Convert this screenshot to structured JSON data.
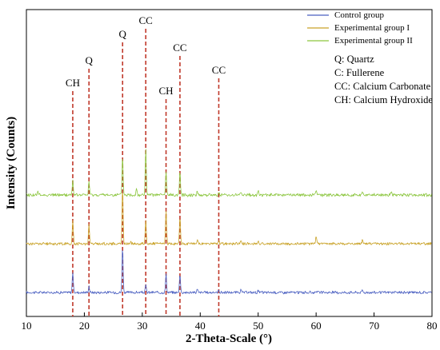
{
  "chart_data": {
    "type": "line",
    "title": "",
    "xlabel": "2-Theta-Scale (°)",
    "ylabel": "Intensity (Counts)",
    "xlim": [
      10,
      80
    ],
    "xticks": [
      10,
      20,
      30,
      40,
      50,
      60,
      70,
      80
    ],
    "yticks_shown": false,
    "legend": {
      "placement": "top-right",
      "entries": [
        "Control group",
        "Experimental group I",
        "Experimental group II"
      ]
    },
    "annotations": [
      "Q: Quartz",
      "C: Fullerene",
      "CC: Calcium Carbonate",
      "CH: Calcium Hydroxide"
    ],
    "reference_lines": [
      {
        "x": 18.0,
        "label": "CH"
      },
      {
        "x": 20.8,
        "label": "Q"
      },
      {
        "x": 26.6,
        "label": "Q"
      },
      {
        "x": 30.6,
        "label": "CC"
      },
      {
        "x": 34.1,
        "label": "CH"
      },
      {
        "x": 36.5,
        "label": "CC"
      },
      {
        "x": 43.2,
        "label": "CC"
      }
    ],
    "series": [
      {
        "name": "Control group",
        "color": "#4a5fc1",
        "baseline": 10,
        "noise": 1.5,
        "peaks": [
          [
            18.0,
            26
          ],
          [
            20.8,
            8
          ],
          [
            26.6,
            58
          ],
          [
            30.6,
            9
          ],
          [
            34.1,
            23
          ],
          [
            36.5,
            24
          ],
          [
            39.5,
            4
          ],
          [
            43.2,
            3
          ],
          [
            47.0,
            3
          ],
          [
            50.0,
            2.5
          ],
          [
            60.0,
            3
          ],
          [
            68.0,
            3
          ]
        ]
      },
      {
        "name": "Experimental group I",
        "color": "#c9a227",
        "baseline": 71,
        "noise": 1.5,
        "peaks": [
          [
            18.0,
            28
          ],
          [
            20.8,
            24
          ],
          [
            26.6,
            70
          ],
          [
            28.0,
            4
          ],
          [
            30.6,
            30
          ],
          [
            34.1,
            42
          ],
          [
            36.5,
            34
          ],
          [
            39.5,
            4
          ],
          [
            43.2,
            4
          ],
          [
            47.0,
            5
          ],
          [
            50.0,
            4
          ],
          [
            60.0,
            9
          ],
          [
            68.0,
            6
          ]
        ]
      },
      {
        "name": "Experimental group II",
        "color": "#8cc63f",
        "baseline": 132,
        "noise": 1.7,
        "peaks": [
          [
            12.0,
            4
          ],
          [
            18.0,
            18
          ],
          [
            20.8,
            17
          ],
          [
            26.6,
            48
          ],
          [
            29.0,
            9
          ],
          [
            30.6,
            58
          ],
          [
            34.1,
            28
          ],
          [
            36.5,
            30
          ],
          [
            39.5,
            5
          ],
          [
            43.2,
            3
          ],
          [
            47.0,
            4
          ],
          [
            50.0,
            5
          ],
          [
            60.0,
            5
          ],
          [
            68.0,
            3
          ],
          [
            73.0,
            4
          ]
        ]
      }
    ]
  }
}
